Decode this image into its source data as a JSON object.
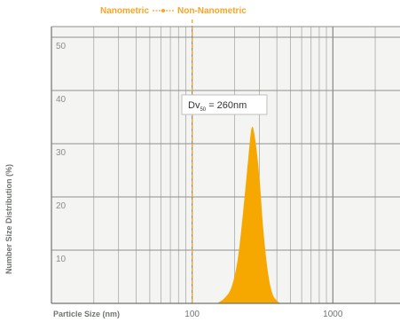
{
  "chart_data": {
    "type": "area",
    "xlabel": "Particle Size (nm)",
    "ylabel": "Number Size Distribution (%)",
    "x_scale": "log",
    "xlim": [
      10,
      3000
    ],
    "ylim": [
      0,
      52
    ],
    "x_ticks": [
      {
        "value": 100,
        "label": "100"
      },
      {
        "value": 1000,
        "label": "1000"
      }
    ],
    "y_ticks": [
      {
        "value": 10,
        "label": "10"
      },
      {
        "value": 20,
        "label": "20"
      },
      {
        "value": 30,
        "label": "30"
      },
      {
        "value": 40,
        "label": "40"
      },
      {
        "value": 50,
        "label": "50"
      }
    ],
    "grid": true,
    "legend": {
      "placement": "top",
      "left_label": "Nanometric",
      "right_label": "Non-Nanometric",
      "color": "#f5a623"
    },
    "boundary_line": {
      "x": 100,
      "color": "#f5a623"
    },
    "annotation": {
      "text_main": "Dv",
      "text_sub": "50",
      "text_rest": " = 260nm"
    },
    "series": [
      {
        "color": "#f7a800",
        "x": [
          150,
          170,
          190,
          210,
          230,
          250,
          265,
          280,
          300,
          320,
          345,
          370,
          400,
          430
        ],
        "y": [
          0,
          1,
          3,
          8,
          17,
          27,
          33,
          31,
          24,
          14,
          6,
          2,
          0.5,
          0
        ]
      }
    ]
  }
}
